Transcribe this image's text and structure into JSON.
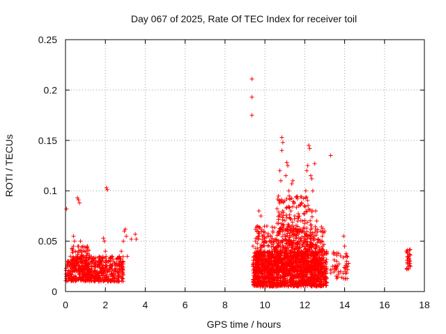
{
  "chart_data": {
    "type": "scatter",
    "title": "Day 067 of 2025, Rate Of TEC Index for receiver toil",
    "xlabel": "GPS time / hours",
    "ylabel": "ROTI / TECUs",
    "xlim": [
      0,
      18
    ],
    "ylim": [
      0,
      0.25
    ],
    "xticks": [
      0,
      2,
      4,
      6,
      8,
      10,
      12,
      14,
      16,
      18
    ],
    "xtick_labels": [
      "0",
      "2",
      "4",
      "6",
      "8",
      "10",
      "12",
      "14",
      "16",
      "18"
    ],
    "yticks": [
      0,
      0.05,
      0.1,
      0.15,
      0.2,
      0.25
    ],
    "ytick_labels": [
      "0",
      "0.05",
      "0.1",
      "0.15",
      "0.2",
      "0.25"
    ],
    "grid": true,
    "marker": "plus",
    "color": "#ff0000",
    "series": [
      {
        "name": "ROTI",
        "points": [
          [
            0.05,
            0.082
          ],
          [
            0.1,
            0.025
          ],
          [
            0.15,
            0.03
          ],
          [
            0.2,
            0.02
          ],
          [
            0.25,
            0.035
          ],
          [
            0.3,
            0.015
          ],
          [
            0.35,
            0.028
          ],
          [
            0.4,
            0.045
          ],
          [
            0.4,
            0.055
          ],
          [
            0.45,
            0.05
          ],
          [
            0.5,
            0.022
          ],
          [
            0.55,
            0.03
          ],
          [
            0.6,
            0.093
          ],
          [
            0.65,
            0.091
          ],
          [
            0.7,
            0.088
          ],
          [
            0.75,
            0.05
          ],
          [
            0.8,
            0.04
          ],
          [
            0.9,
            0.02
          ],
          [
            1.0,
            0.025
          ],
          [
            1.1,
            0.045
          ],
          [
            1.2,
            0.018
          ],
          [
            1.3,
            0.03
          ],
          [
            1.4,
            0.015
          ],
          [
            1.5,
            0.025
          ],
          [
            1.6,
            0.02
          ],
          [
            1.7,
            0.03
          ],
          [
            1.8,
            0.018
          ],
          [
            1.9,
            0.053
          ],
          [
            1.95,
            0.05
          ],
          [
            2.0,
            0.04
          ],
          [
            2.05,
            0.103
          ],
          [
            2.1,
            0.101
          ],
          [
            2.15,
            0.03
          ],
          [
            2.2,
            0.02
          ],
          [
            2.3,
            0.025
          ],
          [
            2.4,
            0.015
          ],
          [
            2.5,
            0.018
          ],
          [
            2.6,
            0.02
          ],
          [
            2.7,
            0.025
          ],
          [
            2.8,
            0.04
          ],
          [
            2.9,
            0.05
          ],
          [
            2.95,
            0.06
          ],
          [
            3.0,
            0.062
          ],
          [
            3.05,
            0.055
          ],
          [
            3.1,
            0.035
          ],
          [
            3.3,
            0.052
          ],
          [
            3.5,
            0.057
          ],
          [
            3.55,
            0.052
          ],
          [
            9.35,
            0.211
          ],
          [
            9.35,
            0.193
          ],
          [
            9.35,
            0.175
          ],
          [
            9.4,
            0.045
          ],
          [
            9.5,
            0.035
          ],
          [
            9.6,
            0.06
          ],
          [
            9.7,
            0.08
          ],
          [
            9.8,
            0.075
          ],
          [
            9.9,
            0.045
          ],
          [
            10.0,
            0.05
          ],
          [
            10.1,
            0.065
          ],
          [
            10.2,
            0.035
          ],
          [
            10.3,
            0.055
          ],
          [
            10.4,
            0.06
          ],
          [
            10.5,
            0.04
          ],
          [
            10.6,
            0.05
          ],
          [
            10.7,
            0.09
          ],
          [
            10.75,
            0.12
          ],
          [
            10.8,
            0.11
          ],
          [
            10.85,
            0.153
          ],
          [
            10.9,
            0.148
          ],
          [
            10.85,
            0.14
          ],
          [
            10.9,
            0.08
          ],
          [
            11.0,
            0.09
          ],
          [
            11.05,
            0.115
          ],
          [
            11.1,
            0.128
          ],
          [
            11.15,
            0.125
          ],
          [
            11.2,
            0.1
          ],
          [
            11.3,
            0.08
          ],
          [
            11.35,
            0.107
          ],
          [
            11.4,
            0.11
          ],
          [
            11.5,
            0.075
          ],
          [
            11.6,
            0.06
          ],
          [
            11.7,
            0.085
          ],
          [
            11.8,
            0.094
          ],
          [
            11.9,
            0.07
          ],
          [
            12.0,
            0.05
          ],
          [
            12.05,
            0.1
          ],
          [
            12.1,
            0.12
          ],
          [
            12.15,
            0.125
          ],
          [
            12.2,
            0.145
          ],
          [
            12.25,
            0.142
          ],
          [
            12.3,
            0.115
          ],
          [
            12.35,
            0.112
          ],
          [
            12.4,
            0.1
          ],
          [
            12.5,
            0.127
          ],
          [
            12.55,
            0.08
          ],
          [
            12.6,
            0.07
          ],
          [
            12.7,
            0.05
          ],
          [
            12.8,
            0.06
          ],
          [
            12.9,
            0.045
          ],
          [
            13.0,
            0.06
          ],
          [
            13.1,
            0.04
          ],
          [
            13.3,
            0.135
          ],
          [
            13.4,
            0.025
          ],
          [
            13.6,
            0.03
          ],
          [
            13.8,
            0.02
          ],
          [
            13.95,
            0.055
          ],
          [
            14.0,
            0.045
          ],
          [
            14.05,
            0.035
          ],
          [
            14.1,
            0.03
          ],
          [
            14.15,
            0.025
          ],
          [
            14.2,
            0.028
          ],
          [
            17.1,
            0.04
          ],
          [
            17.15,
            0.038
          ],
          [
            17.2,
            0.035
          ],
          [
            17.25,
            0.03
          ],
          [
            17.3,
            0.025
          ]
        ],
        "bands": [
          {
            "x0": 0.0,
            "x1": 2.9,
            "y0": 0.01,
            "y1": 0.035,
            "n": 520
          },
          {
            "x0": 0.3,
            "x1": 1.2,
            "y0": 0.02,
            "y1": 0.045,
            "n": 90
          },
          {
            "x0": 9.4,
            "x1": 13.1,
            "y0": 0.005,
            "y1": 0.04,
            "n": 1400
          },
          {
            "x0": 9.5,
            "x1": 13.0,
            "y0": 0.02,
            "y1": 0.065,
            "n": 500
          },
          {
            "x0": 10.6,
            "x1": 12.4,
            "y0": 0.035,
            "y1": 0.095,
            "n": 220
          },
          {
            "x0": 13.3,
            "x1": 14.2,
            "y0": 0.012,
            "y1": 0.04,
            "n": 45
          },
          {
            "x0": 17.1,
            "x1": 17.3,
            "y0": 0.022,
            "y1": 0.042,
            "n": 25
          }
        ]
      }
    ]
  }
}
